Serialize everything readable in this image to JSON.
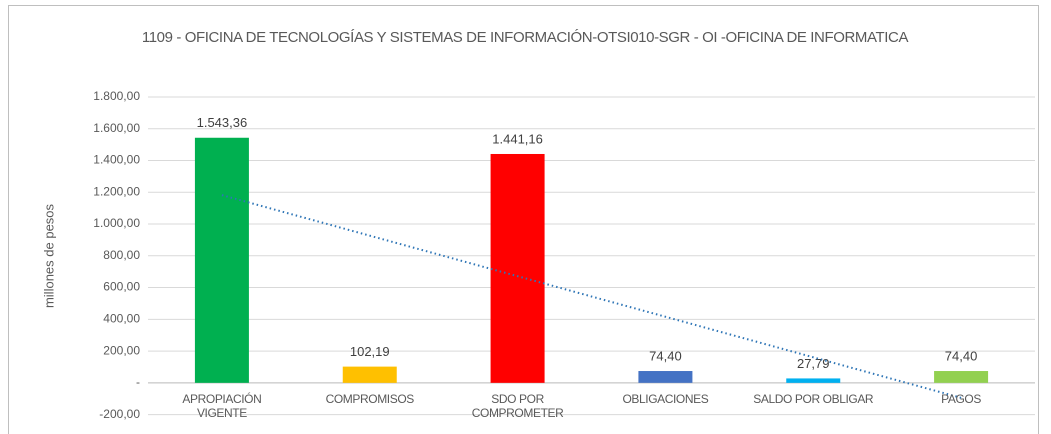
{
  "chart_data": {
    "type": "bar",
    "title": "1109 - OFICINA DE TECNOLOGÍAS Y SISTEMAS DE INFORMACIÓN-OTSI010-SGR - OI -OFICINA DE INFORMATICA",
    "ylabel": "millones de pesos",
    "categories": [
      "APROPIACIÓN VIGENTE",
      "COMPROMISOS",
      "SDO POR COMPROMETER",
      "OBLIGACIONES",
      "SALDO POR OBLIGAR",
      "PAGOS"
    ],
    "values": [
      1543.36,
      102.19,
      1441.16,
      74.4,
      27.79,
      74.4
    ],
    "value_labels": [
      "1.543,36",
      "102,19",
      "1.441,16",
      "74,40",
      "27,79",
      "74,40"
    ],
    "colors": [
      "#00b050",
      "#ffc000",
      "#ff0000",
      "#4472c4",
      "#00b0f0",
      "#92d050"
    ],
    "trendline": "linear",
    "trendline_color": "#2e75b6",
    "ylim": [
      -200,
      1800
    ],
    "yticks": [
      {
        "value": -200,
        "label": "-200,00"
      },
      {
        "value": 0,
        "label": "-"
      },
      {
        "value": 200,
        "label": "200,00"
      },
      {
        "value": 400,
        "label": "400,00"
      },
      {
        "value": 600,
        "label": "600,00"
      },
      {
        "value": 800,
        "label": "800,00"
      },
      {
        "value": 1000,
        "label": "1.000,00"
      },
      {
        "value": 1200,
        "label": "1.200,00"
      },
      {
        "value": 1400,
        "label": "1.400,00"
      },
      {
        "value": 1600,
        "label": "1.600,00"
      },
      {
        "value": 1800,
        "label": "1.800,00"
      }
    ],
    "grid": true
  }
}
